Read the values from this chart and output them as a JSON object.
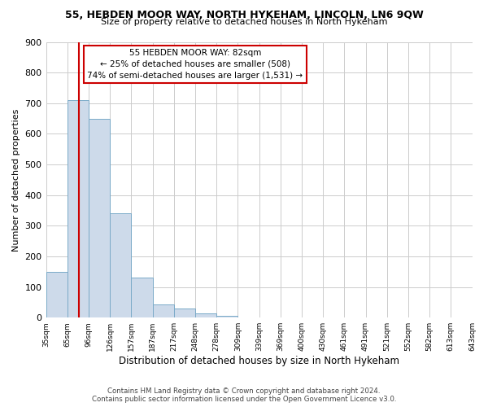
{
  "title": "55, HEBDEN MOOR WAY, NORTH HYKEHAM, LINCOLN, LN6 9QW",
  "subtitle": "Size of property relative to detached houses in North Hykeham",
  "xlabel": "Distribution of detached houses by size in North Hykeham",
  "ylabel": "Number of detached properties",
  "bar_values": [
    150,
    710,
    650,
    340,
    130,
    43,
    30,
    13,
    5,
    0,
    0,
    0,
    0,
    0,
    0,
    0,
    0,
    0,
    0,
    0
  ],
  "bin_labels": [
    "35sqm",
    "65sqm",
    "96sqm",
    "126sqm",
    "157sqm",
    "187sqm",
    "217sqm",
    "248sqm",
    "278sqm",
    "309sqm",
    "339sqm",
    "369sqm",
    "400sqm",
    "430sqm",
    "461sqm",
    "491sqm",
    "521sqm",
    "552sqm",
    "582sqm",
    "613sqm",
    "643sqm"
  ],
  "bar_color": "#cddaea",
  "bar_edge_color": "#7aaac8",
  "vline_color": "#cc0000",
  "vline_x": 1.55,
  "ylim": [
    0,
    900
  ],
  "yticks": [
    0,
    100,
    200,
    300,
    400,
    500,
    600,
    700,
    800,
    900
  ],
  "annotation_line1": "55 HEBDEN MOOR WAY: 82sqm",
  "annotation_line2": "← 25% of detached houses are smaller (508)",
  "annotation_line3": "74% of semi-detached houses are larger (1,531) →",
  "annotation_box_color": "#ffffff",
  "annotation_box_edge": "#cc0000",
  "footer_line1": "Contains HM Land Registry data © Crown copyright and database right 2024.",
  "footer_line2": "Contains public sector information licensed under the Open Government Licence v3.0.",
  "background_color": "#ffffff",
  "grid_color": "#cccccc"
}
